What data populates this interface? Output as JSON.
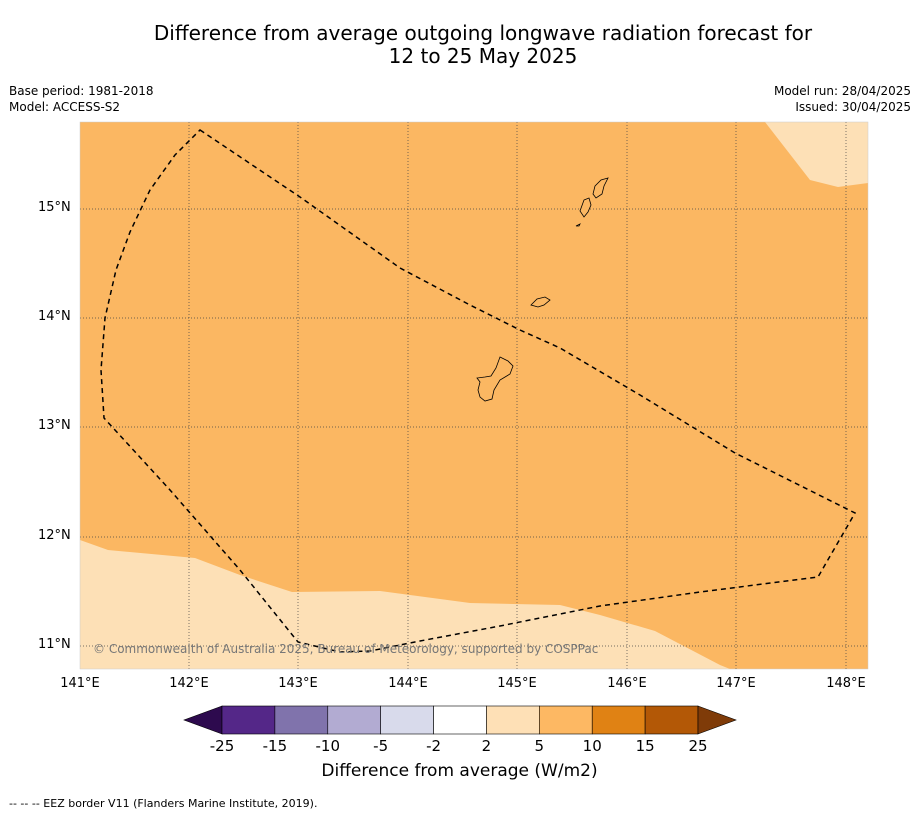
{
  "title_line1": "Difference from average outgoing longwave radiation forecast for",
  "title_line2": "12 to 25 May 2025",
  "meta_left": {
    "base_period": "Base period: 1981-2018",
    "model": "Model: ACCESS-S2"
  },
  "meta_right": {
    "model_run": "Model run: 28/04/2025",
    "issued": "Issued: 30/04/2025"
  },
  "map": {
    "lat_labels": [
      "15°N",
      "14°N",
      "13°N",
      "12°N",
      "11°N"
    ],
    "lon_labels": [
      "141°E",
      "142°E",
      "143°E",
      "144°E",
      "145°E",
      "146°E",
      "147°E",
      "148°E"
    ],
    "copyright": "© Commonwealth of Australia 2025, Bureau of Meteorology, supported by COSPPac",
    "fill_colors": {
      "band_5_10": "#fbb762",
      "band_2_5": "#fde0b6"
    }
  },
  "colorbar": {
    "labels": [
      "-25",
      "-15",
      "-10",
      "-5",
      "-2",
      "2",
      "5",
      "10",
      "15",
      "25"
    ],
    "colors": [
      "#2d0a4e",
      "#542788",
      "#8073ac",
      "#b2abd2",
      "#d8daeb",
      "#ffffff",
      "#fee0b6",
      "#fdb863",
      "#e08214",
      "#b35806",
      "#7f3b08"
    ],
    "title": "Difference from average (W/m2)"
  },
  "footer": "--  --  -- EEZ border V11 (Flanders Marine Institute, 2019)."
}
